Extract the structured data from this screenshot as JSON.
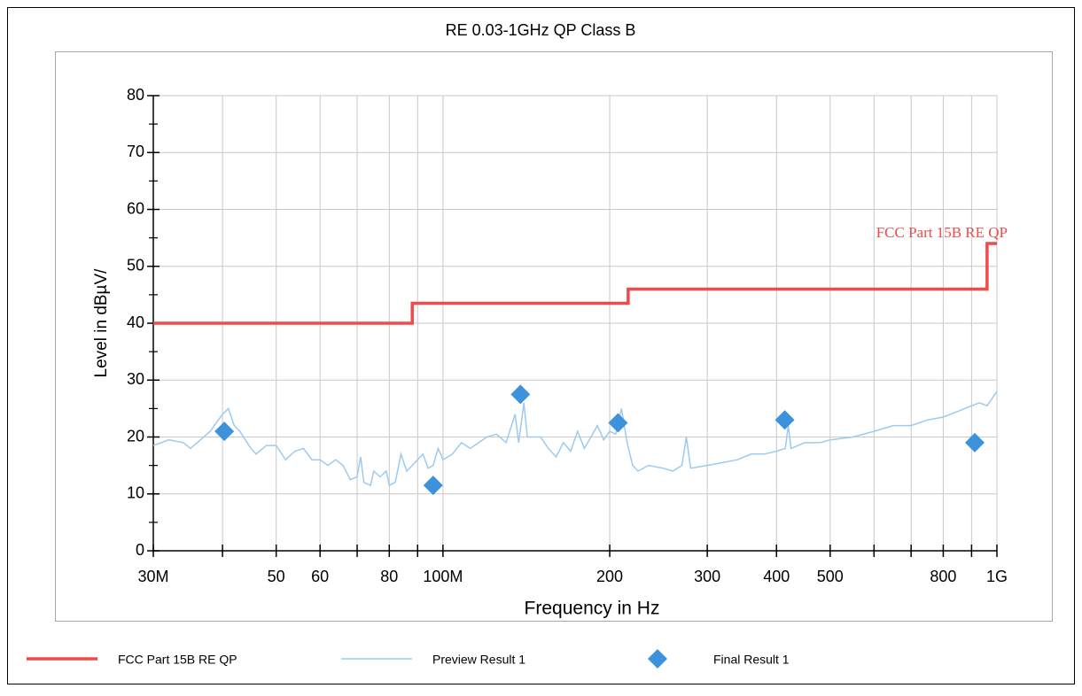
{
  "chart_data": {
    "type": "line",
    "title": "RE 0.03-1GHz QP Class B",
    "xlabel": "Frequency in Hz",
    "ylabel": "Level in dBµV/",
    "xscale": "log",
    "grid": true,
    "xlim": [
      30000000.0,
      1000000000.0
    ],
    "ylim": [
      0,
      80
    ],
    "yticks": [
      0,
      10,
      20,
      30,
      40,
      50,
      60,
      70,
      80
    ],
    "yminor": [
      5,
      15,
      25,
      35,
      45,
      55,
      65,
      75
    ],
    "xticks": [
      {
        "value": 30000000.0,
        "label": "30M"
      },
      {
        "value": 50000000.0,
        "label": "50"
      },
      {
        "value": 60000000.0,
        "label": "60"
      },
      {
        "value": 80000000.0,
        "label": "80"
      },
      {
        "value": 100000000.0,
        "label": "100M"
      },
      {
        "value": 200000000.0,
        "label": "200"
      },
      {
        "value": 300000000.0,
        "label": "300"
      },
      {
        "value": 400000000.0,
        "label": "400"
      },
      {
        "value": 500000000.0,
        "label": "500"
      },
      {
        "value": 800000000.0,
        "label": "800"
      },
      {
        "value": 1000000000.0,
        "label": "1G"
      }
    ],
    "xminor": [
      40000000.0,
      70000000.0,
      90000000.0,
      600000000.0,
      700000000.0,
      900000000.0
    ],
    "limit_label": "FCC Part 15B RE QP",
    "series": [
      {
        "name": "FCC Part 15B RE QP",
        "type": "line",
        "color": "#f04a4a",
        "width": 3.5,
        "x": [
          30000000.0,
          88000000.0,
          88000000.0,
          216000000.0,
          216000000.0,
          960000000.0,
          960000000.0,
          1000000000.0
        ],
        "values": [
          40,
          40,
          43.5,
          43.5,
          46,
          46,
          54,
          54
        ]
      },
      {
        "name": "Preview Result 1",
        "type": "line",
        "color": "#9ccaf0",
        "width": 1.5,
        "x": [
          30000000.0,
          31000000.0,
          32000000.0,
          34000000.0,
          35000000.0,
          36000000.0,
          38000000.0,
          40000000.0,
          41000000.0,
          42000000.0,
          43000000.0,
          45000000.0,
          46000000.0,
          48000000.0,
          50000000.0,
          52000000.0,
          54000000.0,
          56000000.0,
          58000000.0,
          60000000.0,
          62000000.0,
          64000000.0,
          66000000.0,
          68000000.0,
          70000000.0,
          71000000.0,
          72000000.0,
          74000000.0,
          75000000.0,
          77000000.0,
          79000000.0,
          80000000.0,
          82000000.0,
          84000000.0,
          86000000.0,
          88000000.0,
          90000000.0,
          92000000.0,
          94000000.0,
          96000000.0,
          98000000.0,
          100000000.0,
          104000000.0,
          108000000.0,
          112000000.0,
          116000000.0,
          120000000.0,
          125000000.0,
          130000000.0,
          135000000.0,
          137000000.0,
          140000000.0,
          142000000.0,
          146000000.0,
          150000000.0,
          155000000.0,
          160000000.0,
          165000000.0,
          170000000.0,
          175000000.0,
          180000000.0,
          185000000.0,
          190000000.0,
          195000000.0,
          200000000.0,
          205000000.0,
          210000000.0,
          215000000.0,
          220000000.0,
          225000000.0,
          235000000.0,
          250000000.0,
          260000000.0,
          270000000.0,
          275000000.0,
          280000000.0,
          300000000.0,
          320000000.0,
          340000000.0,
          360000000.0,
          380000000.0,
          400000000.0,
          415000000.0,
          420000000.0,
          425000000.0,
          450000000.0,
          480000000.0,
          500000000.0,
          550000000.0,
          600000000.0,
          650000000.0,
          700000000.0,
          750000000.0,
          800000000.0,
          850000000.0,
          900000000.0,
          930000000.0,
          960000000.0,
          1000000000.0
        ],
        "values": [
          18.5,
          19,
          19.5,
          19,
          18,
          19,
          21,
          24,
          25,
          22,
          21,
          18,
          17,
          18.5,
          18.5,
          16,
          17.5,
          18,
          16,
          16,
          15,
          16,
          15,
          12.5,
          13,
          16.5,
          12,
          11.5,
          14,
          13,
          14,
          11.5,
          12,
          17,
          14,
          15,
          16,
          17,
          14.5,
          15,
          18,
          16,
          17,
          19,
          18,
          19,
          20,
          20.5,
          19,
          24,
          19,
          26,
          20,
          20,
          20,
          18,
          16.5,
          19,
          17.5,
          21,
          18,
          20,
          22,
          19.5,
          21,
          20.5,
          25,
          19,
          15,
          14,
          15,
          14.5,
          14,
          15,
          20,
          14.5,
          15,
          15.5,
          16,
          17,
          17,
          17.5,
          18,
          22,
          18,
          19,
          19,
          19.5,
          20,
          21,
          22,
          22,
          23,
          23.5,
          24.5,
          25.5,
          26,
          25.5,
          28
        ]
      },
      {
        "name": "Final Result 1",
        "type": "scatter",
        "color": "#3d92dc",
        "x": [
          40300000.0,
          96000000.0,
          138000000.0,
          207000000.0,
          414000000.0,
          912000000.0
        ],
        "values": [
          21,
          11.5,
          27.5,
          22.5,
          23,
          19
        ]
      }
    ]
  }
}
